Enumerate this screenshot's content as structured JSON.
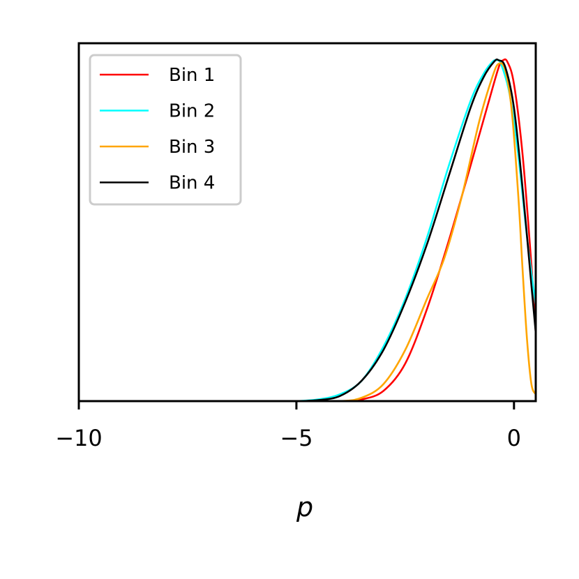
{
  "chart_data": {
    "type": "line",
    "title": "",
    "xlabel": "p",
    "ylabel": "",
    "xlim": [
      -10,
      0.5
    ],
    "ylim": [
      0,
      1.05
    ],
    "xticks": [
      -10,
      -5,
      0
    ],
    "xtick_labels": [
      "−10",
      "−5",
      "0"
    ],
    "yticks_visible": false,
    "grid": false,
    "legend_position": "upper-left",
    "series": [
      {
        "name": "Bin 1",
        "color": "#ff0000",
        "x": [
          -5.0,
          -4.0,
          -3.5,
          -3.0,
          -2.5,
          -2.0,
          -1.5,
          -1.0,
          -0.6,
          -0.35,
          -0.25,
          -0.15,
          0.0,
          0.2,
          0.4,
          0.5
        ],
        "y": [
          0.0,
          0.0,
          0.005,
          0.03,
          0.11,
          0.27,
          0.47,
          0.69,
          0.87,
          0.98,
          1.0,
          0.995,
          0.93,
          0.72,
          0.4,
          0.2
        ]
      },
      {
        "name": "Bin 2",
        "color": "#00ffff",
        "x": [
          -5.0,
          -4.5,
          -4.0,
          -3.5,
          -3.0,
          -2.5,
          -2.0,
          -1.5,
          -1.0,
          -0.7,
          -0.5,
          -0.4,
          -0.3,
          -0.1,
          0.1,
          0.3,
          0.5
        ],
        "y": [
          0.0,
          0.005,
          0.02,
          0.06,
          0.16,
          0.3,
          0.48,
          0.69,
          0.88,
          0.96,
          0.995,
          1.0,
          0.99,
          0.9,
          0.72,
          0.48,
          0.28
        ]
      },
      {
        "name": "Bin 3",
        "color": "#ffa500",
        "x": [
          -5.0,
          -4.0,
          -3.5,
          -3.0,
          -2.5,
          -2.0,
          -1.6,
          -1.2,
          -0.8,
          -0.5,
          -0.35,
          -0.2,
          -0.05,
          0.1,
          0.2,
          0.3,
          0.4,
          0.5
        ],
        "y": [
          0.0,
          0.0,
          0.01,
          0.05,
          0.15,
          0.3,
          0.42,
          0.6,
          0.82,
          0.95,
          0.99,
          0.97,
          0.85,
          0.6,
          0.38,
          0.18,
          0.05,
          0.02
        ]
      },
      {
        "name": "Bin 4",
        "color": "#000000",
        "x": [
          -5.0,
          -4.5,
          -4.0,
          -3.5,
          -3.0,
          -2.5,
          -2.0,
          -1.5,
          -1.0,
          -0.7,
          -0.45,
          -0.35,
          -0.2,
          0.0,
          0.2,
          0.4,
          0.5
        ],
        "y": [
          0.0,
          0.003,
          0.015,
          0.06,
          0.15,
          0.29,
          0.46,
          0.66,
          0.86,
          0.95,
          0.997,
          1.0,
          0.98,
          0.86,
          0.62,
          0.34,
          0.2
        ]
      }
    ]
  }
}
